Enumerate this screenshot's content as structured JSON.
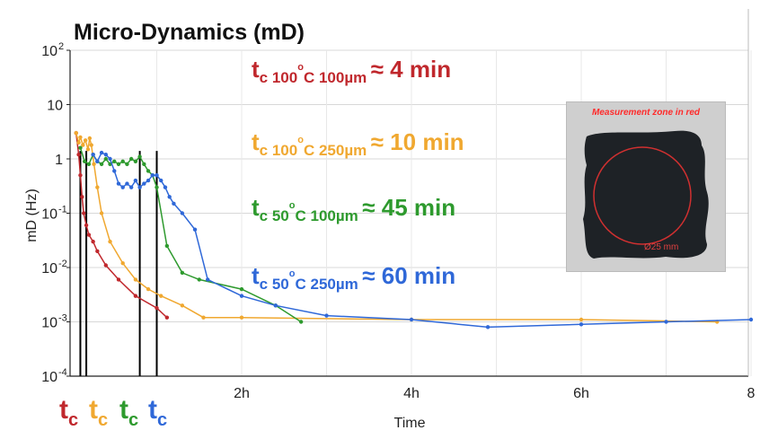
{
  "chart_data": {
    "type": "line",
    "title": "Micro-Dynamics (mD)",
    "xlabel": "Time",
    "ylabel": "mD (Hz)",
    "y_scale": "log",
    "ylim": [
      0.0001,
      100
    ],
    "xlim_hours": [
      0,
      8
    ],
    "x_tick_labels": [
      "2h",
      "4h",
      "6h",
      "8"
    ],
    "y_tick_labels": [
      {
        "base": "10",
        "exp": "2",
        "v": 100
      },
      {
        "base": "10",
        "exp": "",
        "v": 10
      },
      {
        "base": "1",
        "exp": "",
        "v": 1
      },
      {
        "base": "10",
        "exp": "-1",
        "v": 0.1
      },
      {
        "base": "10",
        "exp": "-2",
        "v": 0.01
      },
      {
        "base": "10",
        "exp": "-3",
        "v": 0.001
      },
      {
        "base": "10",
        "exp": "-4",
        "v": 0.0001
      }
    ],
    "grid": true,
    "series": [
      {
        "color": "#c0282d",
        "x": [
          0.05,
          0.08,
          0.1,
          0.12,
          0.14,
          0.17,
          0.2,
          0.25,
          0.3,
          0.4,
          0.55,
          0.75,
          1.0,
          1.12
        ],
        "y": [
          3,
          1.2,
          0.5,
          0.2,
          0.1,
          0.06,
          0.04,
          0.03,
          0.02,
          0.011,
          0.006,
          0.003,
          0.0018,
          0.0012
        ]
      },
      {
        "color": "#f0a830",
        "x": [
          0.05,
          0.08,
          0.1,
          0.13,
          0.16,
          0.19,
          0.21,
          0.23,
          0.26,
          0.3,
          0.35,
          0.45,
          0.6,
          0.75,
          0.9,
          1.05,
          1.3,
          1.55,
          2.0,
          4.0,
          6.0,
          7.6
        ],
        "y": [
          3,
          2,
          2.5,
          1.8,
          2.2,
          1.5,
          2.4,
          1.8,
          0.8,
          0.3,
          0.1,
          0.03,
          0.012,
          0.006,
          0.004,
          0.003,
          0.002,
          0.0012,
          0.0012,
          0.0011,
          0.0011,
          0.001
        ]
      },
      {
        "color": "#2e9a2e",
        "x": [
          0.1,
          0.15,
          0.2,
          0.25,
          0.3,
          0.35,
          0.4,
          0.45,
          0.5,
          0.55,
          0.6,
          0.65,
          0.7,
          0.75,
          0.8,
          0.85,
          0.9,
          0.95,
          1.0,
          1.12,
          1.3,
          1.5,
          2.0,
          2.4,
          2.7
        ],
        "y": [
          1.6,
          0.9,
          0.8,
          1.2,
          0.9,
          0.8,
          1.0,
          0.8,
          0.9,
          0.8,
          0.9,
          0.8,
          1.0,
          0.9,
          1.1,
          0.8,
          0.6,
          0.5,
          0.3,
          0.025,
          0.008,
          0.006,
          0.004,
          0.002,
          0.001
        ]
      },
      {
        "color": "#2f68d8",
        "x": [
          0.25,
          0.3,
          0.35,
          0.4,
          0.45,
          0.5,
          0.55,
          0.6,
          0.65,
          0.7,
          0.75,
          0.8,
          0.85,
          0.9,
          0.95,
          1.0,
          1.05,
          1.1,
          1.15,
          1.2,
          1.3,
          1.45,
          1.6,
          2.0,
          2.4,
          3.0,
          4.0,
          4.9,
          6.0,
          7.0,
          8.0
        ],
        "y": [
          1.2,
          0.9,
          1.3,
          1.2,
          1.0,
          0.6,
          0.35,
          0.3,
          0.35,
          0.3,
          0.4,
          0.3,
          0.35,
          0.4,
          0.5,
          0.5,
          0.4,
          0.3,
          0.2,
          0.15,
          0.1,
          0.05,
          0.006,
          0.003,
          0.002,
          0.0013,
          0.0011,
          0.0008,
          0.0009,
          0.001,
          0.0011
        ]
      }
    ],
    "tc_lines_hours": [
      0.1,
      0.17,
      0.8,
      1.0
    ]
  },
  "annotations": [
    {
      "color": "#c0282d",
      "t": "t",
      "sub": "c 100",
      "sup": "o",
      "sub2": "C 100µm",
      "val": "≈ 4 min"
    },
    {
      "color": "#f0a830",
      "t": "t",
      "sub": "c 100",
      "sup": "o",
      "sub2": "C 250µm",
      "val": "≈ 10 min"
    },
    {
      "color": "#2e9a2e",
      "t": "t",
      "sub": "c 50",
      "sup": "o",
      "sub2": "C 100µm",
      "val": "≈ 45 min"
    },
    {
      "color": "#2f68d8",
      "t": "t",
      "sub": "c 50",
      "sup": "o",
      "sub2": "C 250µm",
      "val": "≈ 60 min"
    }
  ],
  "tc_labels": [
    {
      "t": "t",
      "sub": "c",
      "color": "#c0282d"
    },
    {
      "t": "t",
      "sub": "c",
      "color": "#f0a830"
    },
    {
      "t": "t",
      "sub": "c",
      "color": "#2e9a2e"
    },
    {
      "t": "t",
      "sub": "c",
      "color": "#2f68d8"
    }
  ],
  "inset": {
    "title": "Measurement zone in red",
    "diameter": "Ø25 mm"
  }
}
